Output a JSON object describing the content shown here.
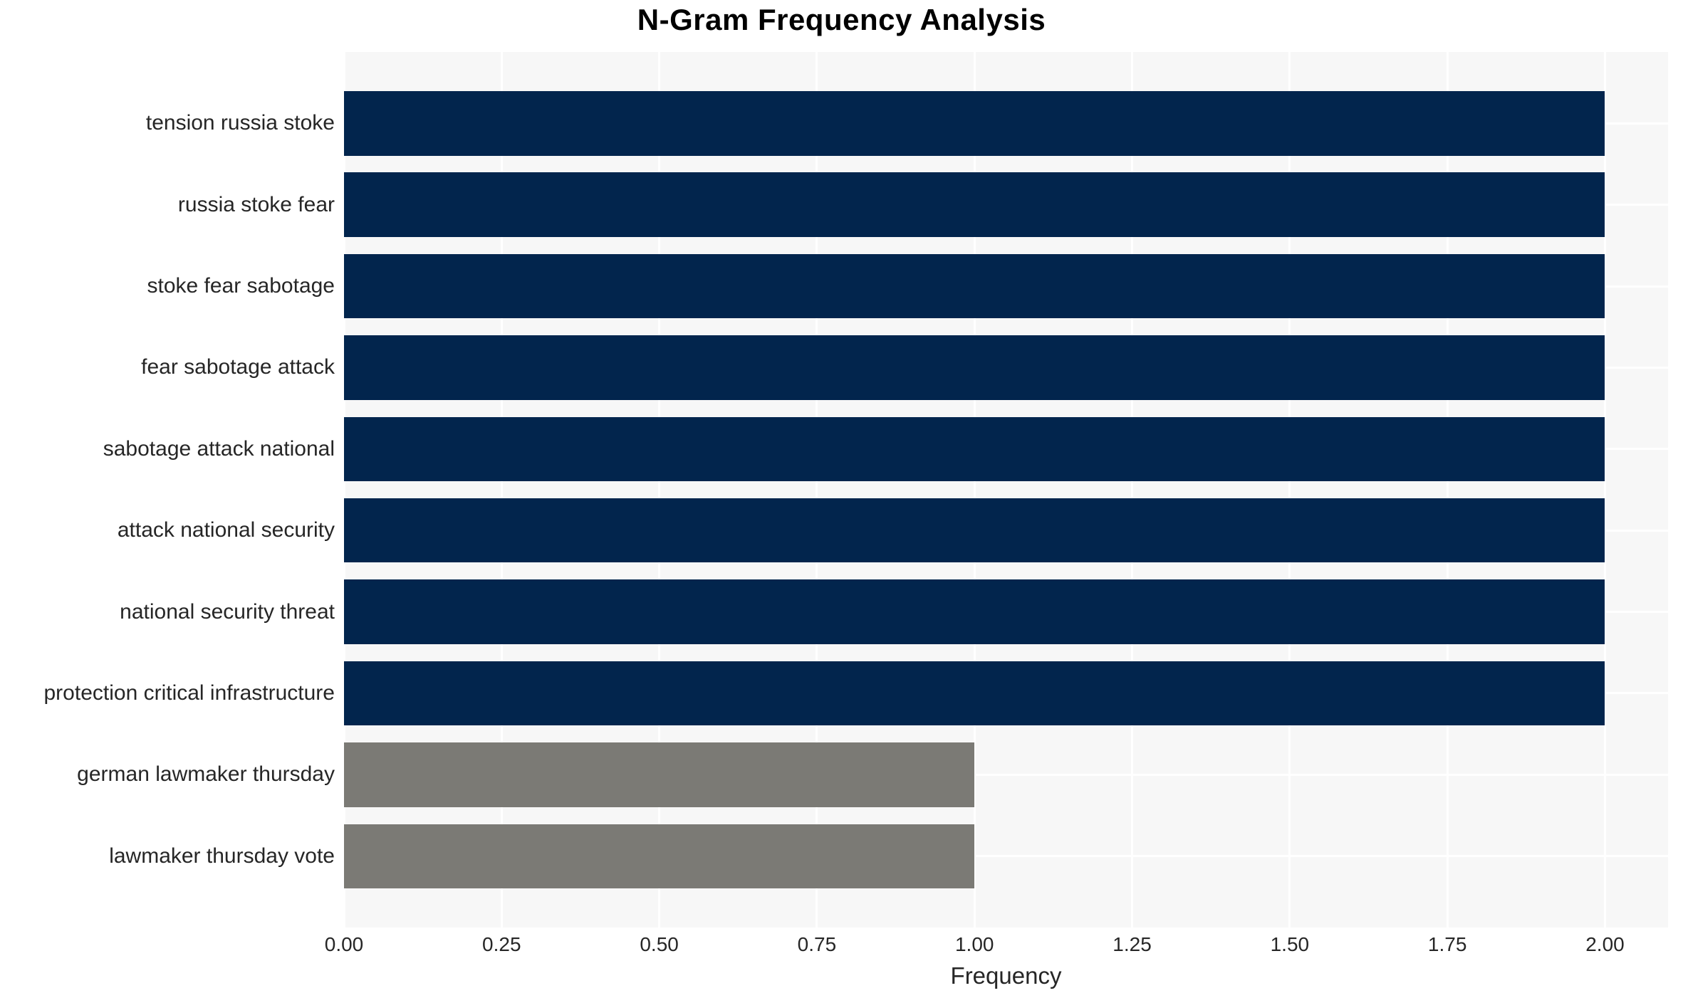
{
  "chart_data": {
    "type": "bar",
    "orientation": "horizontal",
    "title": "N-Gram Frequency Analysis",
    "xlabel": "Frequency",
    "ylabel": "",
    "categories": [
      "tension russia stoke",
      "russia stoke fear",
      "stoke fear sabotage",
      "fear sabotage attack",
      "sabotage attack national",
      "attack national security",
      "national security threat",
      "protection critical infrastructure",
      "german lawmaker thursday",
      "lawmaker thursday vote"
    ],
    "values": [
      2,
      2,
      2,
      2,
      2,
      2,
      2,
      2,
      1,
      1
    ],
    "bar_colors": [
      "#02254d",
      "#02254d",
      "#02254d",
      "#02254d",
      "#02254d",
      "#02254d",
      "#02254d",
      "#02254d",
      "#7b7a75",
      "#7b7a75"
    ],
    "xlim": [
      0,
      2.1
    ],
    "xticks": [
      0,
      0.25,
      0.5,
      0.75,
      1.0,
      1.25,
      1.5,
      1.75,
      2.0
    ],
    "xtick_labels": [
      "0.00",
      "0.25",
      "0.50",
      "0.75",
      "1.00",
      "1.25",
      "1.50",
      "1.75",
      "2.00"
    ],
    "grid": true,
    "legend": "none",
    "colors": {
      "high_value_bar": "#02254d",
      "low_value_bar": "#7b7a75",
      "plot_background": "#f7f7f7",
      "gridline": "#ffffff",
      "text": "#262626",
      "title_text": "#000000"
    }
  }
}
